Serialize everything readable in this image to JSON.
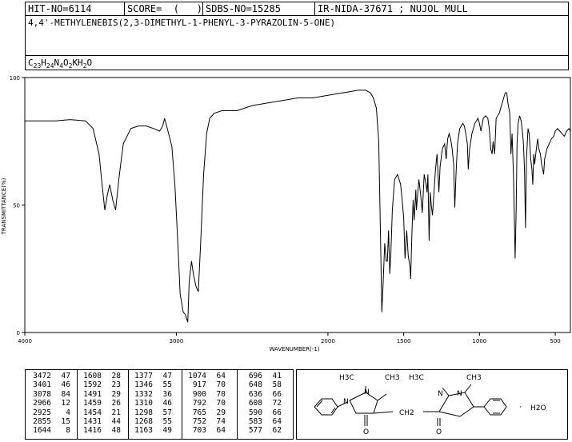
{
  "header": {
    "hit_no": "HIT-NO=6114",
    "score": "SCORE=  (   )",
    "sdbs_no": "SDBS-NO=15285",
    "ir_nida": "IR-NIDA-37671 ; NUJOL MULL"
  },
  "compound_name": "4,4'-METHYLENEBIS(2,3-DIMETHYL-1-PHENYL-3-PYRAZOLIN-5-ONE)",
  "formula": {
    "parts": [
      {
        "t": "C",
        "sub": false
      },
      {
        "t": "23",
        "sub": true
      },
      {
        "t": "H",
        "sub": false
      },
      {
        "t": "24",
        "sub": true
      },
      {
        "t": "N",
        "sub": false
      },
      {
        "t": "4",
        "sub": true
      },
      {
        "t": "O",
        "sub": false
      },
      {
        "t": "2",
        "sub": true
      },
      {
        "t": "KH",
        "sub": false
      },
      {
        "t": "2",
        "sub": true
      },
      {
        "t": "O",
        "sub": false
      }
    ]
  },
  "chart_data": {
    "type": "line",
    "xlabel": "WAVENUMBER(-1)",
    "ylabel": "TRANSMITTANCE(%)",
    "xlim": [
      4000,
      400
    ],
    "ylim": [
      0,
      100
    ],
    "x_ticks": [
      4000,
      3000,
      2000,
      1500,
      1000,
      500
    ],
    "y_ticks": [
      0,
      50,
      100
    ],
    "x_ticks_labels": [
      "4000",
      "3000",
      "2000",
      "1500",
      "1000",
      "500"
    ],
    "y_ticks_labels": [
      "0",
      "50",
      "100"
    ],
    "spectrum": [
      [
        4000,
        83
      ],
      [
        3900,
        83
      ],
      [
        3800,
        83
      ],
      [
        3700,
        83.5
      ],
      [
        3600,
        83
      ],
      [
        3550,
        80
      ],
      [
        3510,
        70
      ],
      [
        3490,
        58
      ],
      [
        3472,
        48
      ],
      [
        3455,
        54
      ],
      [
        3440,
        58
      ],
      [
        3420,
        52
      ],
      [
        3401,
        48
      ],
      [
        3380,
        60
      ],
      [
        3350,
        74
      ],
      [
        3300,
        80
      ],
      [
        3250,
        81
      ],
      [
        3200,
        81
      ],
      [
        3150,
        80
      ],
      [
        3110,
        79
      ],
      [
        3090,
        81
      ],
      [
        3078,
        84
      ],
      [
        3060,
        80
      ],
      [
        3030,
        73
      ],
      [
        3010,
        58
      ],
      [
        2990,
        35
      ],
      [
        2975,
        15
      ],
      [
        2966,
        12
      ],
      [
        2955,
        8
      ],
      [
        2940,
        7
      ],
      [
        2925,
        4
      ],
      [
        2915,
        20
      ],
      [
        2900,
        28
      ],
      [
        2885,
        22
      ],
      [
        2870,
        18
      ],
      [
        2855,
        16
      ],
      [
        2840,
        35
      ],
      [
        2820,
        62
      ],
      [
        2800,
        78
      ],
      [
        2780,
        84
      ],
      [
        2750,
        86
      ],
      [
        2700,
        87
      ],
      [
        2600,
        87
      ],
      [
        2500,
        89
      ],
      [
        2400,
        90
      ],
      [
        2300,
        91
      ],
      [
        2200,
        92
      ],
      [
        2100,
        92
      ],
      [
        2000,
        93
      ],
      [
        1900,
        94
      ],
      [
        1800,
        95
      ],
      [
        1750,
        95
      ],
      [
        1720,
        94
      ],
      [
        1700,
        92
      ],
      [
        1680,
        88
      ],
      [
        1665,
        75
      ],
      [
        1655,
        45
      ],
      [
        1644,
        8
      ],
      [
        1635,
        20
      ],
      [
        1625,
        35
      ],
      [
        1615,
        28
      ],
      [
        1608,
        28
      ],
      [
        1600,
        40
      ],
      [
        1592,
        23
      ],
      [
        1585,
        30
      ],
      [
        1575,
        48
      ],
      [
        1560,
        60
      ],
      [
        1540,
        62
      ],
      [
        1520,
        58
      ],
      [
        1510,
        52
      ],
      [
        1500,
        45
      ],
      [
        1491,
        29
      ],
      [
        1480,
        40
      ],
      [
        1470,
        30
      ],
      [
        1459,
        26
      ],
      [
        1454,
        21
      ],
      [
        1445,
        40
      ],
      [
        1438,
        52
      ],
      [
        1431,
        44
      ],
      [
        1420,
        56
      ],
      [
        1416,
        48
      ],
      [
        1400,
        60
      ],
      [
        1390,
        55
      ],
      [
        1377,
        47
      ],
      [
        1365,
        62
      ],
      [
        1352,
        58
      ],
      [
        1346,
        55
      ],
      [
        1340,
        62
      ],
      [
        1332,
        36
      ],
      [
        1325,
        55
      ],
      [
        1318,
        50
      ],
      [
        1310,
        46
      ],
      [
        1300,
        55
      ],
      [
        1298,
        57
      ],
      [
        1290,
        64
      ],
      [
        1280,
        70
      ],
      [
        1268,
        55
      ],
      [
        1260,
        65
      ],
      [
        1245,
        72
      ],
      [
        1230,
        74
      ],
      [
        1220,
        68
      ],
      [
        1210,
        76
      ],
      [
        1200,
        78
      ],
      [
        1190,
        76
      ],
      [
        1180,
        72
      ],
      [
        1170,
        66
      ],
      [
        1163,
        49
      ],
      [
        1155,
        62
      ],
      [
        1145,
        74
      ],
      [
        1130,
        80
      ],
      [
        1110,
        82
      ],
      [
        1100,
        81
      ],
      [
        1090,
        78
      ],
      [
        1080,
        74
      ],
      [
        1074,
        64
      ],
      [
        1065,
        72
      ],
      [
        1050,
        78
      ],
      [
        1030,
        82
      ],
      [
        1010,
        84
      ],
      [
        1000,
        82
      ],
      [
        990,
        79
      ],
      [
        975,
        84
      ],
      [
        960,
        85
      ],
      [
        945,
        84
      ],
      [
        935,
        80
      ],
      [
        925,
        72
      ],
      [
        917,
        70
      ],
      [
        910,
        75
      ],
      [
        900,
        70
      ],
      [
        890,
        84
      ],
      [
        870,
        86
      ],
      [
        860,
        88
      ],
      [
        850,
        90
      ],
      [
        840,
        92
      ],
      [
        830,
        94
      ],
      [
        820,
        94
      ],
      [
        812,
        90
      ],
      [
        800,
        86
      ],
      [
        792,
        70
      ],
      [
        785,
        78
      ],
      [
        775,
        60
      ],
      [
        765,
        29
      ],
      [
        758,
        48
      ],
      [
        752,
        74
      ],
      [
        745,
        82
      ],
      [
        735,
        85
      ],
      [
        725,
        83
      ],
      [
        715,
        78
      ],
      [
        710,
        74
      ],
      [
        703,
        64
      ],
      [
        696,
        41
      ],
      [
        690,
        68
      ],
      [
        680,
        80
      ],
      [
        672,
        78
      ],
      [
        662,
        68
      ],
      [
        654,
        64
      ],
      [
        648,
        58
      ],
      [
        642,
        70
      ],
      [
        636,
        66
      ],
      [
        625,
        72
      ],
      [
        616,
        76
      ],
      [
        608,
        72
      ],
      [
        598,
        70
      ],
      [
        590,
        66
      ],
      [
        583,
        64
      ],
      [
        577,
        62
      ],
      [
        570,
        68
      ],
      [
        555,
        72
      ],
      [
        540,
        74
      ],
      [
        525,
        76
      ],
      [
        510,
        77
      ],
      [
        500,
        79
      ],
      [
        485,
        80
      ],
      [
        470,
        79
      ],
      [
        455,
        78
      ],
      [
        440,
        77
      ],
      [
        425,
        79
      ],
      [
        410,
        80
      ],
      [
        400,
        79
      ]
    ],
    "peak_table": [
      [
        [
          "3472",
          "47"
        ],
        [
          "3401",
          "46"
        ],
        [
          "3078",
          "84"
        ],
        [
          "2966",
          "12"
        ],
        [
          "2925",
          "4"
        ],
        [
          "2855",
          "15"
        ],
        [
          "1644",
          "8"
        ]
      ],
      [
        [
          "1608",
          "28"
        ],
        [
          "1592",
          "23"
        ],
        [
          "1491",
          "29"
        ],
        [
          "1459",
          "26"
        ],
        [
          "1454",
          "21"
        ],
        [
          "1431",
          "44"
        ],
        [
          "1416",
          "48"
        ]
      ],
      [
        [
          "1377",
          "47"
        ],
        [
          "1346",
          "55"
        ],
        [
          "1332",
          "36"
        ],
        [
          "1310",
          "46"
        ],
        [
          "1298",
          "57"
        ],
        [
          "1268",
          "55"
        ],
        [
          "1163",
          "49"
        ]
      ],
      [
        [
          "1074",
          "64"
        ],
        [
          "917",
          "70"
        ],
        [
          "900",
          "70"
        ],
        [
          "792",
          "70"
        ],
        [
          "765",
          "29"
        ],
        [
          "752",
          "74"
        ],
        [
          "703",
          "64"
        ]
      ],
      [
        [
          "696",
          "41"
        ],
        [
          "648",
          "58"
        ],
        [
          "636",
          "66"
        ],
        [
          "608",
          "72"
        ],
        [
          "590",
          "66"
        ],
        [
          "583",
          "64"
        ],
        [
          "577",
          "62"
        ]
      ]
    ]
  },
  "structure": {
    "labels": {
      "h3c_left": "H3C",
      "ch3_a": "CH3",
      "h3c_mid": "H3C",
      "ch3_right": "CH3",
      "n1": "N",
      "n2": "N",
      "n3": "N",
      "n4": "N",
      "ch2": "CH2",
      "o_left": "O",
      "o_right": "O",
      "h2o": "H2O",
      "dot": "·"
    }
  }
}
